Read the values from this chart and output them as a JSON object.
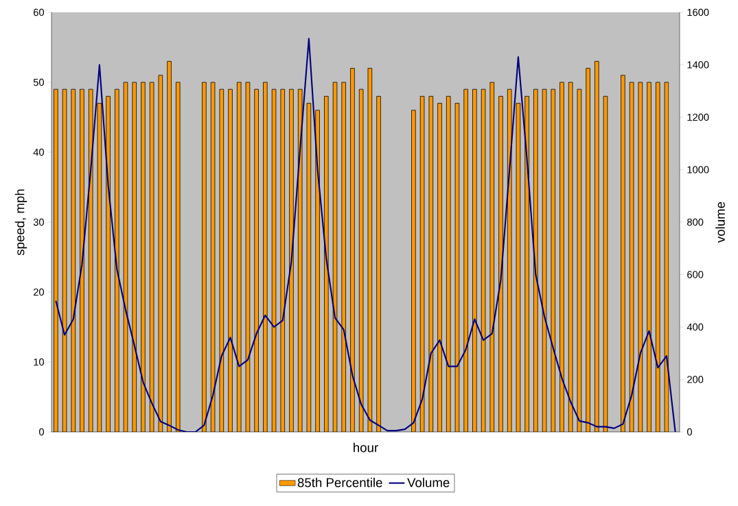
{
  "chart_data": {
    "type": "bar",
    "xlabel": "hour",
    "ylabel": "speed, mph",
    "y2label": "volume",
    "categories": [
      null,
      null,
      null,
      null,
      null,
      null,
      null,
      null,
      null,
      null,
      null,
      null,
      null,
      null,
      null,
      null,
      null,
      null,
      null,
      null,
      null,
      null,
      null,
      null,
      null,
      null,
      null,
      null,
      null,
      null,
      null,
      null,
      null,
      null,
      null,
      null,
      null,
      null,
      null,
      null,
      null,
      null,
      null,
      null,
      null,
      null,
      null,
      null,
      null,
      null,
      null,
      null,
      null,
      null,
      null,
      null,
      null,
      null,
      null,
      null,
      null,
      null,
      null,
      null,
      null,
      null,
      null,
      null,
      null,
      null,
      null,
      null
    ],
    "series": [
      {
        "name": "85th Percentile",
        "color": "#ff9900",
        "values": [
          49,
          49,
          49,
          49,
          49,
          47,
          48,
          49,
          50,
          50,
          50,
          50,
          51,
          53,
          50,
          null,
          null,
          50,
          50,
          49,
          49,
          50,
          50,
          49,
          50,
          49,
          49,
          49,
          49,
          47,
          46,
          48,
          50,
          50,
          52,
          49,
          52,
          48,
          null,
          null,
          null,
          46,
          48,
          48,
          47,
          48,
          47,
          49,
          49,
          49,
          50,
          48,
          49,
          47,
          48,
          49,
          49,
          49,
          50,
          50,
          49,
          52,
          53,
          48,
          null,
          51,
          50,
          50,
          50,
          50,
          50,
          null
        ]
      },
      {
        "name": "Volume",
        "type": "line",
        "axis": "y2",
        "color": "#000080",
        "values": [
          500,
          370,
          430,
          640,
          1000,
          1400,
          940,
          620,
          465,
          330,
          190,
          110,
          40,
          25,
          8,
          0,
          0,
          26,
          140,
          290,
          360,
          250,
          275,
          375,
          445,
          400,
          425,
          650,
          1080,
          1500,
          1000,
          660,
          435,
          390,
          215,
          105,
          45,
          25,
          5,
          5,
          10,
          35,
          125,
          300,
          350,
          250,
          250,
          315,
          430,
          350,
          375,
          580,
          1000,
          1430,
          1040,
          600,
          440,
          320,
          205,
          115,
          42,
          35,
          20,
          20,
          14,
          30,
          140,
          300,
          385,
          245,
          290,
          0
        ]
      }
    ],
    "ylim": [
      0,
      60
    ],
    "yticks": [
      0,
      10,
      20,
      30,
      40,
      50,
      60
    ],
    "y2lim": [
      0,
      1600
    ],
    "y2ticks": [
      0,
      200,
      400,
      600,
      800,
      1000,
      1200,
      1400,
      1600
    ],
    "legend": "bottom"
  }
}
